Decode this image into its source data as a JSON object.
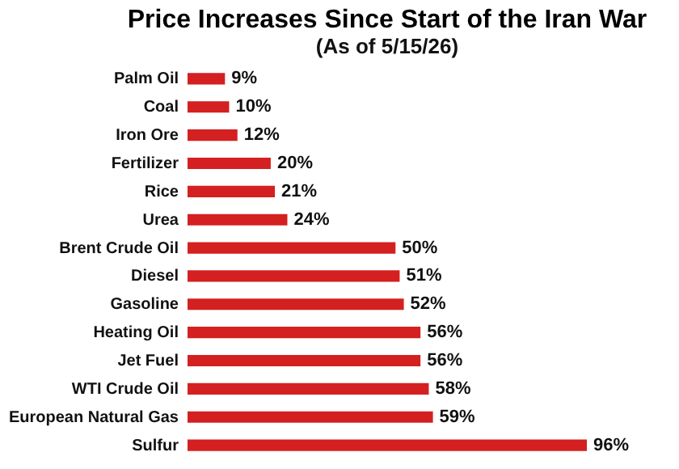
{
  "chart_data": {
    "type": "bar",
    "orientation": "horizontal",
    "title": "Price Increases Since Start of the Iran War",
    "subtitle": "(As of 5/15/26)",
    "categories": [
      "Palm Oil",
      "Coal",
      "Iron Ore",
      "Fertilizer",
      "Rice",
      "Urea",
      "Brent Crude Oil",
      "Diesel",
      "Gasoline",
      "Heating Oil",
      "Jet Fuel",
      "WTI Crude Oil",
      "European Natural Gas",
      "Sulfur"
    ],
    "values": [
      9,
      10,
      12,
      20,
      21,
      24,
      50,
      51,
      52,
      56,
      56,
      58,
      59,
      96
    ],
    "value_labels": [
      "9%",
      "10%",
      "12%",
      "20%",
      "21%",
      "24%",
      "50%",
      "51%",
      "52%",
      "56%",
      "56%",
      "58%",
      "59%",
      "96%"
    ],
    "color": "#d42020",
    "xlim": [
      0,
      96
    ]
  }
}
